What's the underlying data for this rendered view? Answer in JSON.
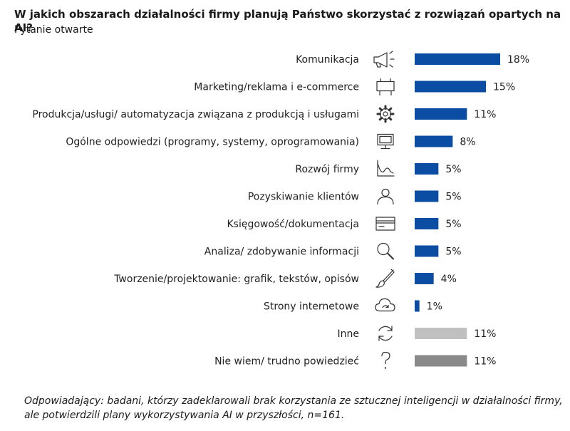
{
  "title": "W jakich obszarach działalności firmy planują Państwo skorzystać z rozwiązań opartych na AI?",
  "subtitle": "Pytanie otwarte",
  "footnote": {
    "line1": "Odpowiadający: badani, którzy  zadeklarowali brak korzystania ze sztucznej inteligencji w działalności firmy,",
    "line2": "ale potwierdzili plany wykorzystywania AI w przyszłości, n=161."
  },
  "colors": {
    "main": "#0b4da2",
    "inne": "#c0c0c0",
    "nie_wiem": "#8a8a8a"
  },
  "chart_data": {
    "type": "bar",
    "orientation": "horizontal",
    "unit": "%",
    "categories": [
      "Komunikacja",
      "Marketing/reklama i e-commerce",
      "Produkcja/usługi/ automatyzacja związana z produkcją i usługami",
      "Ogólne odpowiedzi (programy, systemy, oprogramowania)",
      "Rozwój firmy",
      "Pozyskiwanie klientów",
      "Księgowość/dokumentacja",
      "Analiza/ zdobywanie informacji",
      "Tworzenie/projektowanie: grafik, tekstów, opisów",
      "Strony internetowe",
      "Inne",
      "Nie wiem/ trudno powiedzieć"
    ],
    "values": [
      18,
      15,
      11,
      8,
      5,
      5,
      5,
      5,
      4,
      1,
      11,
      11
    ],
    "value_labels": [
      "18%",
      "15%",
      "11%",
      "8%",
      "5%",
      "5%",
      "5%",
      "5%",
      "4%",
      "1%",
      "11%",
      "11%"
    ],
    "bar_colors": [
      "#0b4da2",
      "#0b4da2",
      "#0b4da2",
      "#0b4da2",
      "#0b4da2",
      "#0b4da2",
      "#0b4da2",
      "#0b4da2",
      "#0b4da2",
      "#0b4da2",
      "#c0c0c0",
      "#8a8a8a"
    ],
    "icons": [
      "megaphone-icon",
      "billboard-icon",
      "gear-icon",
      "monitor-icon",
      "growth-chart-icon",
      "person-icon",
      "credit-card-icon",
      "magnifier-icon",
      "brush-icon",
      "cloud-icon",
      "refresh-icon",
      "question-icon"
    ],
    "xlim": [
      0,
      18
    ],
    "grid": false,
    "legend": "none"
  }
}
